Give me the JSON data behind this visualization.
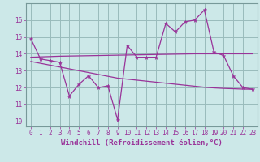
{
  "x": [
    0,
    1,
    2,
    3,
    4,
    5,
    6,
    7,
    8,
    9,
    10,
    11,
    12,
    13,
    14,
    15,
    16,
    17,
    18,
    19,
    20,
    21,
    22,
    23
  ],
  "y_main": [
    14.9,
    13.7,
    13.6,
    13.5,
    11.5,
    12.2,
    12.7,
    12.0,
    12.1,
    10.1,
    14.5,
    13.8,
    13.8,
    13.8,
    15.8,
    15.3,
    15.9,
    16.0,
    16.6,
    14.1,
    13.9,
    12.7,
    12.0,
    11.9
  ],
  "y_upper": [
    13.8,
    13.82,
    13.84,
    13.86,
    13.87,
    13.88,
    13.89,
    13.9,
    13.91,
    13.92,
    13.93,
    13.94,
    13.95,
    13.96,
    13.97,
    13.98,
    13.99,
    14.0,
    14.0,
    14.0,
    14.0,
    14.0,
    14.0,
    14.0
  ],
  "y_lower": [
    13.55,
    13.44,
    13.33,
    13.22,
    13.11,
    13.0,
    12.89,
    12.78,
    12.67,
    12.56,
    12.5,
    12.44,
    12.38,
    12.32,
    12.26,
    12.2,
    12.14,
    12.08,
    12.02,
    11.98,
    11.95,
    11.93,
    11.91,
    11.9
  ],
  "bg_color": "#cce8e8",
  "line_color": "#993399",
  "grid_color": "#99bbbb",
  "xlabel": "Windchill (Refroidissement éolien,°C)",
  "ylim": [
    9.7,
    17.0
  ],
  "xlim": [
    -0.5,
    23.5
  ],
  "yticks": [
    10,
    11,
    12,
    13,
    14,
    15,
    16
  ],
  "xticks": [
    0,
    1,
    2,
    3,
    4,
    5,
    6,
    7,
    8,
    9,
    10,
    11,
    12,
    13,
    14,
    15,
    16,
    17,
    18,
    19,
    20,
    21,
    22,
    23
  ],
  "tick_fontsize": 5.5,
  "label_fontsize": 6.5
}
